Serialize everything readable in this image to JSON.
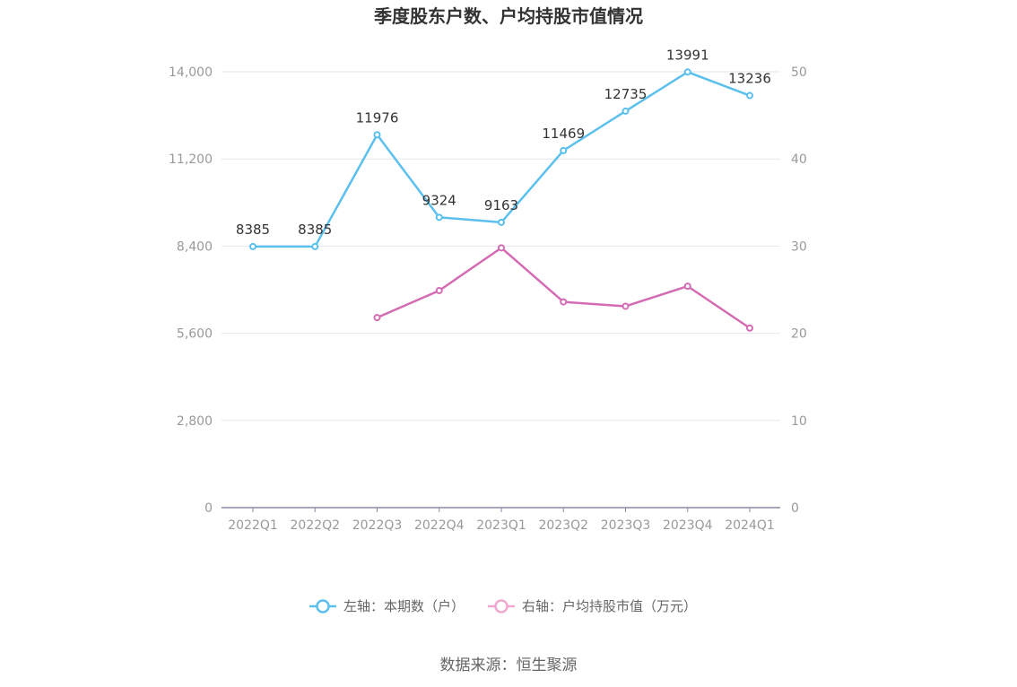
{
  "chart_data": {
    "type": "line",
    "title": "季度股东户数、户均持股市值情况",
    "categories": [
      "2022Q1",
      "2022Q2",
      "2022Q3",
      "2022Q4",
      "2023Q1",
      "2023Q2",
      "2023Q3",
      "2023Q4",
      "2024Q1"
    ],
    "series": [
      {
        "name": "左轴：本期数（户）",
        "axis": "left",
        "color": "#5bc0ee",
        "values": [
          8385,
          8385,
          11976,
          9324,
          9163,
          11469,
          12735,
          13991,
          13236
        ],
        "labels": [
          "8385",
          "8385",
          "11976",
          "9324",
          "9163",
          "11469",
          "12735",
          "13991",
          "13236"
        ]
      },
      {
        "name": "右轴：户均持股市值（万元）",
        "axis": "right",
        "color": "#d46bb3",
        "legend_color": "#f0a8d0",
        "values": [
          null,
          null,
          21.8,
          24.9,
          29.8,
          23.6,
          23.1,
          25.4,
          20.6
        ]
      }
    ],
    "left_axis": {
      "ylim": [
        0,
        14000
      ],
      "ticks": [
        "0",
        "2,800",
        "5,600",
        "8,400",
        "11,200",
        "14,000"
      ]
    },
    "right_axis": {
      "ylim": [
        0,
        50
      ],
      "ticks": [
        "0",
        "10",
        "20",
        "30",
        "40",
        "50"
      ]
    },
    "grid": true,
    "legend_position": "bottom"
  },
  "source": "数据来源：恒生聚源"
}
